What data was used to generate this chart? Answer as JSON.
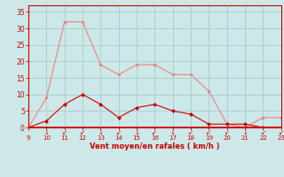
{
  "x": [
    9,
    10,
    11,
    12,
    13,
    14,
    15,
    16,
    17,
    18,
    19,
    20,
    21,
    22,
    23
  ],
  "rafales": [
    0,
    9,
    32,
    32,
    19,
    16,
    19,
    19,
    16,
    16,
    11,
    1,
    0,
    3,
    3
  ],
  "moyen": [
    0,
    2,
    7,
    10,
    7,
    3,
    6,
    7,
    5,
    4,
    1,
    1,
    1,
    0,
    0
  ],
  "xlabel": "Vent moyen/en rafales ( km/h )",
  "ylim": [
    0,
    37
  ],
  "xlim": [
    9,
    23
  ],
  "yticks": [
    0,
    5,
    10,
    15,
    20,
    25,
    30,
    35
  ],
  "xticks": [
    9,
    10,
    11,
    12,
    13,
    14,
    15,
    16,
    17,
    18,
    19,
    20,
    21,
    22,
    23
  ],
  "bg_color": "#cce8e8",
  "grid_color": "#aacccc",
  "line_color_rafales": "#f08080",
  "line_color_moyen": "#cc0000",
  "tick_color": "#cc0000",
  "label_color": "#cc0000",
  "spine_color": "#cc0000",
  "wind_arrows": [
    "↑",
    "↓",
    "↙",
    "↙",
    "↓",
    "↙",
    "↓",
    "↙",
    "↓",
    "↙",
    "↙",
    "↙",
    "↓",
    "↙",
    "↙"
  ]
}
